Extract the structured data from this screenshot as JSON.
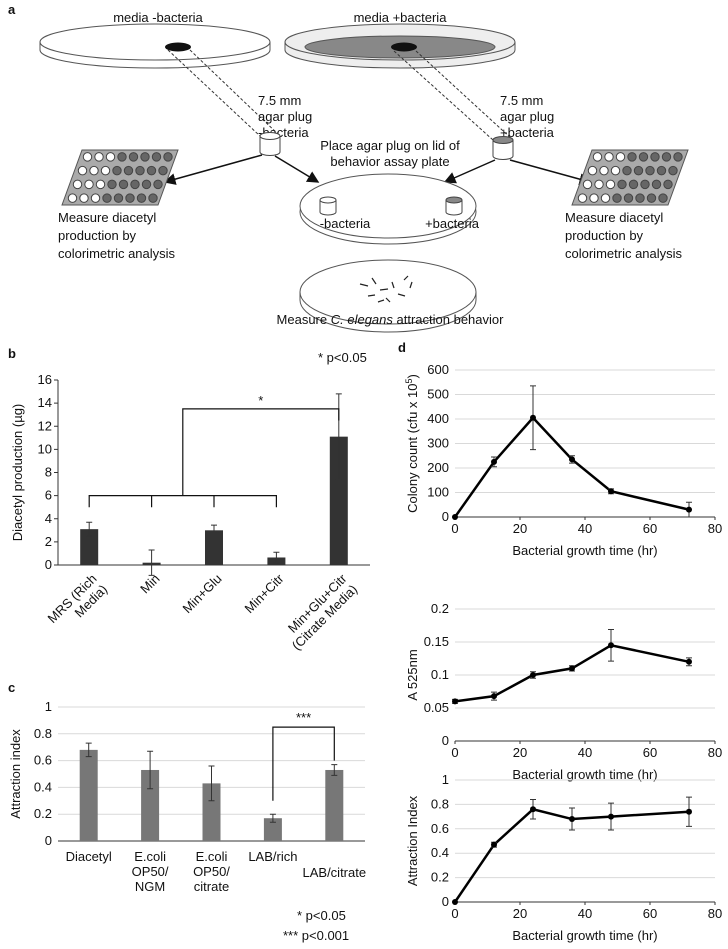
{
  "panel_labels": [
    "a",
    "b",
    "c",
    "d"
  ],
  "diagram": {
    "left_media": "media -bacteria",
    "right_media": "media +bacteria",
    "left_plug": [
      "7.5 mm",
      "agar plug",
      "-bacteria"
    ],
    "right_plug": [
      "7.5 mm",
      "agar plug",
      "+bacteria"
    ],
    "place_text": [
      "Place agar plug on lid of",
      "behavior assay plate"
    ],
    "plug_neg": "-bacteria",
    "plug_pos": "+bacteria",
    "measure_left": [
      "Measure diacetyl",
      "production by",
      "colorimetric analysis"
    ],
    "measure_right": [
      "Measure diacetyl",
      "production by",
      "colorimetric analysis"
    ],
    "behavior_text": [
      "Measure ",
      "C. elegans",
      " attraction behavior"
    ]
  },
  "chart_data": [
    {
      "type": "bar",
      "color": "#333333",
      "grid": false,
      "ylabel": "Diacetyl production (µg)",
      "categories": [
        "MRS (Rich Media)",
        "Min",
        "Min+Glu",
        "Min+Citr",
        "Min+Glu+Citr (Citrate Media)"
      ],
      "values": [
        3.1,
        0.2,
        3.0,
        0.65,
        11.1
      ],
      "errors": [
        0.6,
        1.1,
        0.45,
        0.45,
        3.7
      ],
      "ylim": [
        0,
        16
      ],
      "yticks": [
        0,
        2,
        4,
        6,
        8,
        10,
        12,
        14,
        16
      ],
      "annotations": [
        "*",
        "* p<0.05"
      ]
    },
    {
      "type": "bar",
      "color": "#777777",
      "grid": true,
      "ylabel": "Attraction index",
      "categories": [
        "Diacetyl",
        "E.coli OP50/ NGM",
        "E.coli OP50/ citrate",
        "LAB/rich",
        "LAB/citrate"
      ],
      "values": [
        0.68,
        0.53,
        0.43,
        0.17,
        0.53
      ],
      "errors": [
        0.05,
        0.14,
        0.13,
        0.03,
        0.04
      ],
      "ylim": [
        0,
        1
      ],
      "yticks": [
        0,
        0.2,
        0.4,
        0.6,
        0.8,
        1
      ],
      "annotations": [
        "***",
        "* p<0.05",
        "*** p<0.001"
      ]
    },
    {
      "type": "line",
      "color": "#000000",
      "grid": true,
      "ylabel": [
        "Colony count (cfu x 10",
        "5",
        ")"
      ],
      "xlabel": "Bacterial growth time (hr)",
      "x": [
        0,
        12,
        24,
        36,
        48,
        72
      ],
      "values": [
        0,
        225,
        405,
        235,
        105,
        30
      ],
      "errors": [
        0,
        20,
        130,
        15,
        10,
        30
      ],
      "xlim": [
        0,
        80
      ],
      "xticks": [
        0,
        20,
        40,
        60,
        80
      ],
      "ylim": [
        0,
        600
      ],
      "yticks": [
        0,
        100,
        200,
        300,
        400,
        500,
        600
      ]
    },
    {
      "type": "line",
      "color": "#000000",
      "grid": true,
      "ylabel": "A 525nm",
      "xlabel": "Bacterial growth time (hr)",
      "x": [
        0,
        12,
        24,
        36,
        48,
        72
      ],
      "values": [
        0.06,
        0.068,
        0.1,
        0.11,
        0.145,
        0.12
      ],
      "errors": [
        0.003,
        0.006,
        0.005,
        0.004,
        0.024,
        0.006
      ],
      "xlim": [
        0,
        80
      ],
      "xticks": [
        0,
        20,
        40,
        60,
        80
      ],
      "ylim": [
        0,
        0.2
      ],
      "yticks": [
        0,
        0.05,
        0.1,
        0.15,
        0.2
      ]
    },
    {
      "type": "line",
      "color": "#000000",
      "grid": true,
      "ylabel": "Attraction Index",
      "xlabel": "Bacterial growth time (hr)",
      "x": [
        0,
        12,
        24,
        36,
        48,
        72
      ],
      "values": [
        0,
        0.47,
        0.76,
        0.68,
        0.7,
        0.74
      ],
      "errors": [
        0,
        0.02,
        0.08,
        0.09,
        0.11,
        0.12
      ],
      "xlim": [
        0,
        80
      ],
      "xticks": [
        0,
        20,
        40,
        60,
        80
      ],
      "ylim": [
        0,
        1
      ],
      "yticks": [
        0,
        0.2,
        0.4,
        0.6,
        0.8,
        1
      ]
    }
  ]
}
